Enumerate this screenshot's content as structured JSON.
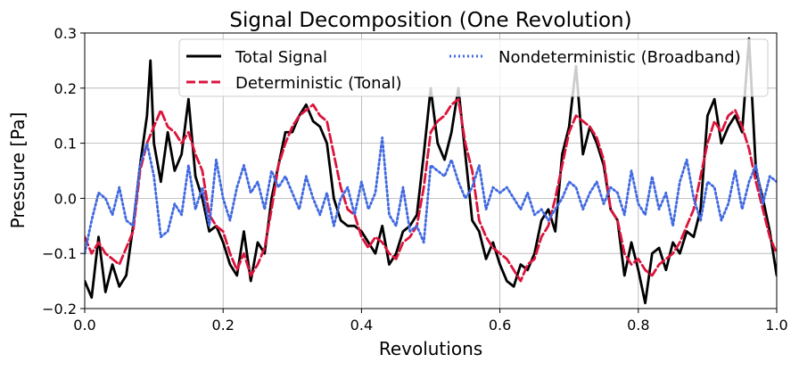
{
  "chart_data": {
    "type": "line",
    "title": "Signal Decomposition (One Revolution)",
    "xlabel": "Revolutions",
    "ylabel": "Pressure [Pa]",
    "xlim": [
      0.0,
      1.0
    ],
    "ylim": [
      -0.2,
      0.3
    ],
    "xticks": [
      0.0,
      0.2,
      0.4,
      0.6,
      0.8,
      1.0
    ],
    "xtick_labels": [
      "0.0",
      "0.2",
      "0.4",
      "0.6",
      "0.8",
      "1.0"
    ],
    "yticks": [
      -0.2,
      -0.1,
      0.0,
      0.1,
      0.2,
      0.3
    ],
    "ytick_labels": [
      "−0.2",
      "−0.1",
      "0.0",
      "0.1",
      "0.2",
      "0.3"
    ],
    "grid": true,
    "legend_position": "top-right",
    "series": [
      {
        "name": "Total Signal",
        "color": "#000000",
        "style": "solid",
        "x": [
          0.0,
          0.01,
          0.02,
          0.03,
          0.04,
          0.05,
          0.06,
          0.07,
          0.08,
          0.09,
          0.095,
          0.1,
          0.11,
          0.12,
          0.13,
          0.14,
          0.15,
          0.16,
          0.17,
          0.18,
          0.19,
          0.2,
          0.21,
          0.22,
          0.23,
          0.24,
          0.25,
          0.26,
          0.27,
          0.28,
          0.29,
          0.3,
          0.31,
          0.32,
          0.33,
          0.34,
          0.35,
          0.36,
          0.37,
          0.38,
          0.39,
          0.4,
          0.41,
          0.42,
          0.43,
          0.44,
          0.45,
          0.46,
          0.47,
          0.48,
          0.49,
          0.5,
          0.51,
          0.52,
          0.53,
          0.54,
          0.55,
          0.56,
          0.57,
          0.58,
          0.59,
          0.6,
          0.61,
          0.62,
          0.63,
          0.64,
          0.65,
          0.66,
          0.67,
          0.68,
          0.69,
          0.7,
          0.71,
          0.72,
          0.73,
          0.74,
          0.75,
          0.76,
          0.77,
          0.78,
          0.79,
          0.8,
          0.81,
          0.82,
          0.83,
          0.84,
          0.85,
          0.86,
          0.87,
          0.88,
          0.89,
          0.9,
          0.91,
          0.92,
          0.93,
          0.94,
          0.95,
          0.96,
          0.97,
          0.98,
          0.99,
          1.0
        ],
        "y": [
          -0.15,
          -0.18,
          -0.07,
          -0.17,
          -0.12,
          -0.16,
          -0.14,
          -0.05,
          0.06,
          0.15,
          0.25,
          0.1,
          0.03,
          0.12,
          0.05,
          0.08,
          0.18,
          0.04,
          0.0,
          -0.06,
          -0.05,
          -0.08,
          -0.12,
          -0.14,
          -0.06,
          -0.15,
          -0.08,
          -0.1,
          0.0,
          0.06,
          0.12,
          0.12,
          0.15,
          0.17,
          0.14,
          0.13,
          0.1,
          0.0,
          -0.04,
          -0.05,
          -0.05,
          -0.06,
          -0.08,
          -0.1,
          -0.05,
          -0.12,
          -0.1,
          -0.06,
          -0.05,
          -0.03,
          0.08,
          0.2,
          0.1,
          0.07,
          0.12,
          0.2,
          0.08,
          -0.04,
          -0.06,
          -0.11,
          -0.08,
          -0.12,
          -0.15,
          -0.16,
          -0.12,
          -0.13,
          -0.1,
          -0.04,
          -0.02,
          -0.06,
          0.08,
          0.13,
          0.24,
          0.08,
          0.13,
          0.1,
          0.06,
          -0.02,
          -0.04,
          -0.14,
          -0.08,
          -0.13,
          -0.19,
          -0.1,
          -0.09,
          -0.13,
          -0.08,
          -0.1,
          -0.06,
          -0.07,
          -0.02,
          0.15,
          0.18,
          0.1,
          0.13,
          0.15,
          0.12,
          0.29,
          0.05,
          0.0,
          -0.06,
          -0.14
        ]
      },
      {
        "name": "Deterministic (Tonal)",
        "color": "#dc143c",
        "style": "dashed",
        "x": [
          0.0,
          0.01,
          0.02,
          0.03,
          0.04,
          0.05,
          0.06,
          0.07,
          0.08,
          0.09,
          0.1,
          0.11,
          0.12,
          0.13,
          0.14,
          0.15,
          0.16,
          0.17,
          0.18,
          0.19,
          0.2,
          0.21,
          0.22,
          0.23,
          0.24,
          0.25,
          0.26,
          0.27,
          0.28,
          0.29,
          0.3,
          0.31,
          0.32,
          0.33,
          0.34,
          0.35,
          0.36,
          0.37,
          0.38,
          0.39,
          0.4,
          0.41,
          0.42,
          0.43,
          0.44,
          0.45,
          0.46,
          0.47,
          0.48,
          0.49,
          0.5,
          0.51,
          0.52,
          0.53,
          0.54,
          0.55,
          0.56,
          0.57,
          0.58,
          0.59,
          0.6,
          0.61,
          0.62,
          0.63,
          0.64,
          0.65,
          0.66,
          0.67,
          0.68,
          0.69,
          0.7,
          0.71,
          0.72,
          0.73,
          0.74,
          0.75,
          0.76,
          0.77,
          0.78,
          0.79,
          0.8,
          0.81,
          0.82,
          0.83,
          0.84,
          0.85,
          0.86,
          0.87,
          0.88,
          0.89,
          0.9,
          0.91,
          0.92,
          0.93,
          0.94,
          0.95,
          0.96,
          0.97,
          0.98,
          0.99,
          1.0
        ],
        "y": [
          -0.07,
          -0.1,
          -0.08,
          -0.1,
          -0.11,
          -0.12,
          -0.09,
          -0.06,
          0.05,
          0.1,
          0.13,
          0.16,
          0.13,
          0.12,
          0.1,
          0.12,
          0.08,
          0.05,
          -0.03,
          -0.05,
          -0.06,
          -0.1,
          -0.13,
          -0.1,
          -0.14,
          -0.12,
          -0.09,
          -0.02,
          0.06,
          0.1,
          0.13,
          0.15,
          0.16,
          0.17,
          0.15,
          0.14,
          0.08,
          0.02,
          -0.02,
          -0.03,
          -0.07,
          -0.09,
          -0.07,
          -0.08,
          -0.1,
          -0.11,
          -0.08,
          -0.07,
          -0.05,
          0.02,
          0.12,
          0.14,
          0.15,
          0.17,
          0.18,
          0.1,
          0.05,
          -0.04,
          -0.07,
          -0.09,
          -0.1,
          -0.11,
          -0.13,
          -0.15,
          -0.12,
          -0.11,
          -0.07,
          -0.05,
          0.0,
          0.06,
          0.12,
          0.15,
          0.14,
          0.13,
          0.11,
          0.07,
          -0.02,
          -0.04,
          -0.1,
          -0.12,
          -0.11,
          -0.13,
          -0.14,
          -0.12,
          -0.11,
          -0.1,
          -0.08,
          -0.05,
          -0.02,
          0.04,
          0.1,
          0.14,
          0.12,
          0.15,
          0.16,
          0.13,
          0.09,
          0.03,
          -0.02,
          -0.07,
          -0.1
        ]
      },
      {
        "name": "Nondeterministic (Broadband)",
        "color": "#4169e1",
        "style": "dotted",
        "x": [
          0.0,
          0.01,
          0.02,
          0.03,
          0.04,
          0.05,
          0.06,
          0.07,
          0.08,
          0.09,
          0.1,
          0.11,
          0.12,
          0.13,
          0.14,
          0.15,
          0.16,
          0.17,
          0.18,
          0.19,
          0.2,
          0.21,
          0.22,
          0.23,
          0.24,
          0.25,
          0.26,
          0.27,
          0.28,
          0.29,
          0.3,
          0.31,
          0.32,
          0.33,
          0.34,
          0.35,
          0.36,
          0.37,
          0.38,
          0.39,
          0.4,
          0.41,
          0.42,
          0.43,
          0.44,
          0.45,
          0.46,
          0.47,
          0.48,
          0.49,
          0.5,
          0.51,
          0.52,
          0.53,
          0.54,
          0.55,
          0.56,
          0.57,
          0.58,
          0.59,
          0.6,
          0.61,
          0.62,
          0.63,
          0.64,
          0.65,
          0.66,
          0.67,
          0.68,
          0.69,
          0.7,
          0.71,
          0.72,
          0.73,
          0.74,
          0.75,
          0.76,
          0.77,
          0.78,
          0.79,
          0.8,
          0.81,
          0.82,
          0.83,
          0.84,
          0.85,
          0.86,
          0.87,
          0.88,
          0.89,
          0.9,
          0.91,
          0.92,
          0.93,
          0.94,
          0.95,
          0.96,
          0.97,
          0.98,
          0.99,
          1.0
        ],
        "y": [
          -0.1,
          -0.04,
          0.01,
          0.0,
          -0.03,
          0.02,
          -0.04,
          -0.05,
          0.06,
          0.1,
          0.04,
          -0.07,
          -0.06,
          -0.01,
          -0.03,
          0.06,
          -0.02,
          0.02,
          -0.05,
          0.07,
          0.0,
          -0.04,
          0.02,
          0.06,
          0.01,
          0.03,
          -0.02,
          0.05,
          0.02,
          0.04,
          0.01,
          -0.02,
          0.04,
          0.0,
          -0.03,
          0.01,
          -0.05,
          0.0,
          0.02,
          -0.03,
          0.03,
          -0.02,
          0.01,
          0.11,
          -0.03,
          -0.05,
          0.02,
          -0.06,
          -0.05,
          -0.08,
          0.06,
          0.05,
          0.04,
          0.07,
          0.03,
          0.0,
          0.02,
          0.06,
          -0.02,
          0.02,
          0.01,
          0.02,
          0.0,
          -0.02,
          0.01,
          -0.03,
          -0.02,
          -0.04,
          -0.02,
          0.0,
          0.03,
          0.02,
          -0.02,
          0.01,
          0.03,
          -0.01,
          0.02,
          0.01,
          -0.03,
          0.05,
          -0.01,
          -0.03,
          0.04,
          -0.02,
          0.01,
          -0.05,
          0.03,
          0.07,
          0.0,
          -0.04,
          0.03,
          0.02,
          -0.04,
          -0.01,
          0.05,
          -0.02,
          0.03,
          0.06,
          -0.01,
          0.04,
          0.03
        ]
      }
    ]
  }
}
